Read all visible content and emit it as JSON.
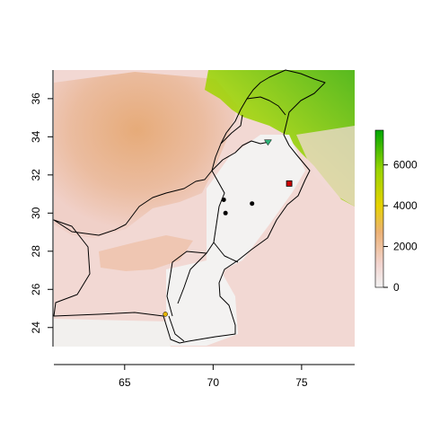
{
  "map": {
    "x_ticks": [
      {
        "value": 65,
        "label": "65"
      },
      {
        "value": 70,
        "label": "70"
      },
      {
        "value": 75,
        "label": "75"
      }
    ],
    "y_ticks": [
      {
        "value": 24,
        "label": "24"
      },
      {
        "value": 26,
        "label": "26"
      },
      {
        "value": 28,
        "label": "28"
      },
      {
        "value": 30,
        "label": "30"
      },
      {
        "value": 32,
        "label": "32"
      },
      {
        "value": 34,
        "label": "34"
      },
      {
        "value": 36,
        "label": "36"
      }
    ],
    "xlim": [
      61,
      78
    ],
    "ylim": [
      23,
      37.5
    ],
    "raster_extent": {
      "x": [
        61,
        78
      ],
      "y": [
        23.7,
        37.1
      ]
    },
    "legend": {
      "ticks": [
        {
          "value": 0,
          "label": "0"
        },
        {
          "value": 2000,
          "label": "2000"
        },
        {
          "value": 4000,
          "label": "4000"
        },
        {
          "value": 6000,
          "label": "6000"
        }
      ],
      "min": 0,
      "max": 7700,
      "colors": [
        "#f2f2f2",
        "#f2d4cf",
        "#ecb176",
        "#e6d200",
        "#98d400",
        "#00a600"
      ]
    },
    "points": [
      {
        "lon": 70.6,
        "lat": 30.7,
        "color": "#000000",
        "name": "point"
      },
      {
        "lon": 70.7,
        "lat": 30.0,
        "color": "#000000",
        "name": "point"
      },
      {
        "lon": 72.2,
        "lat": 30.5,
        "color": "#000000",
        "name": "point"
      },
      {
        "lon": 74.3,
        "lat": 31.55,
        "color": "#cc0000",
        "name": "red-marker"
      },
      {
        "lon": 73.1,
        "lat": 33.7,
        "color": "#2fb47a",
        "name": "green-marker"
      },
      {
        "lon": 67.3,
        "lat": 24.7,
        "color": "#e5b400",
        "name": "yellow-marker"
      }
    ]
  }
}
